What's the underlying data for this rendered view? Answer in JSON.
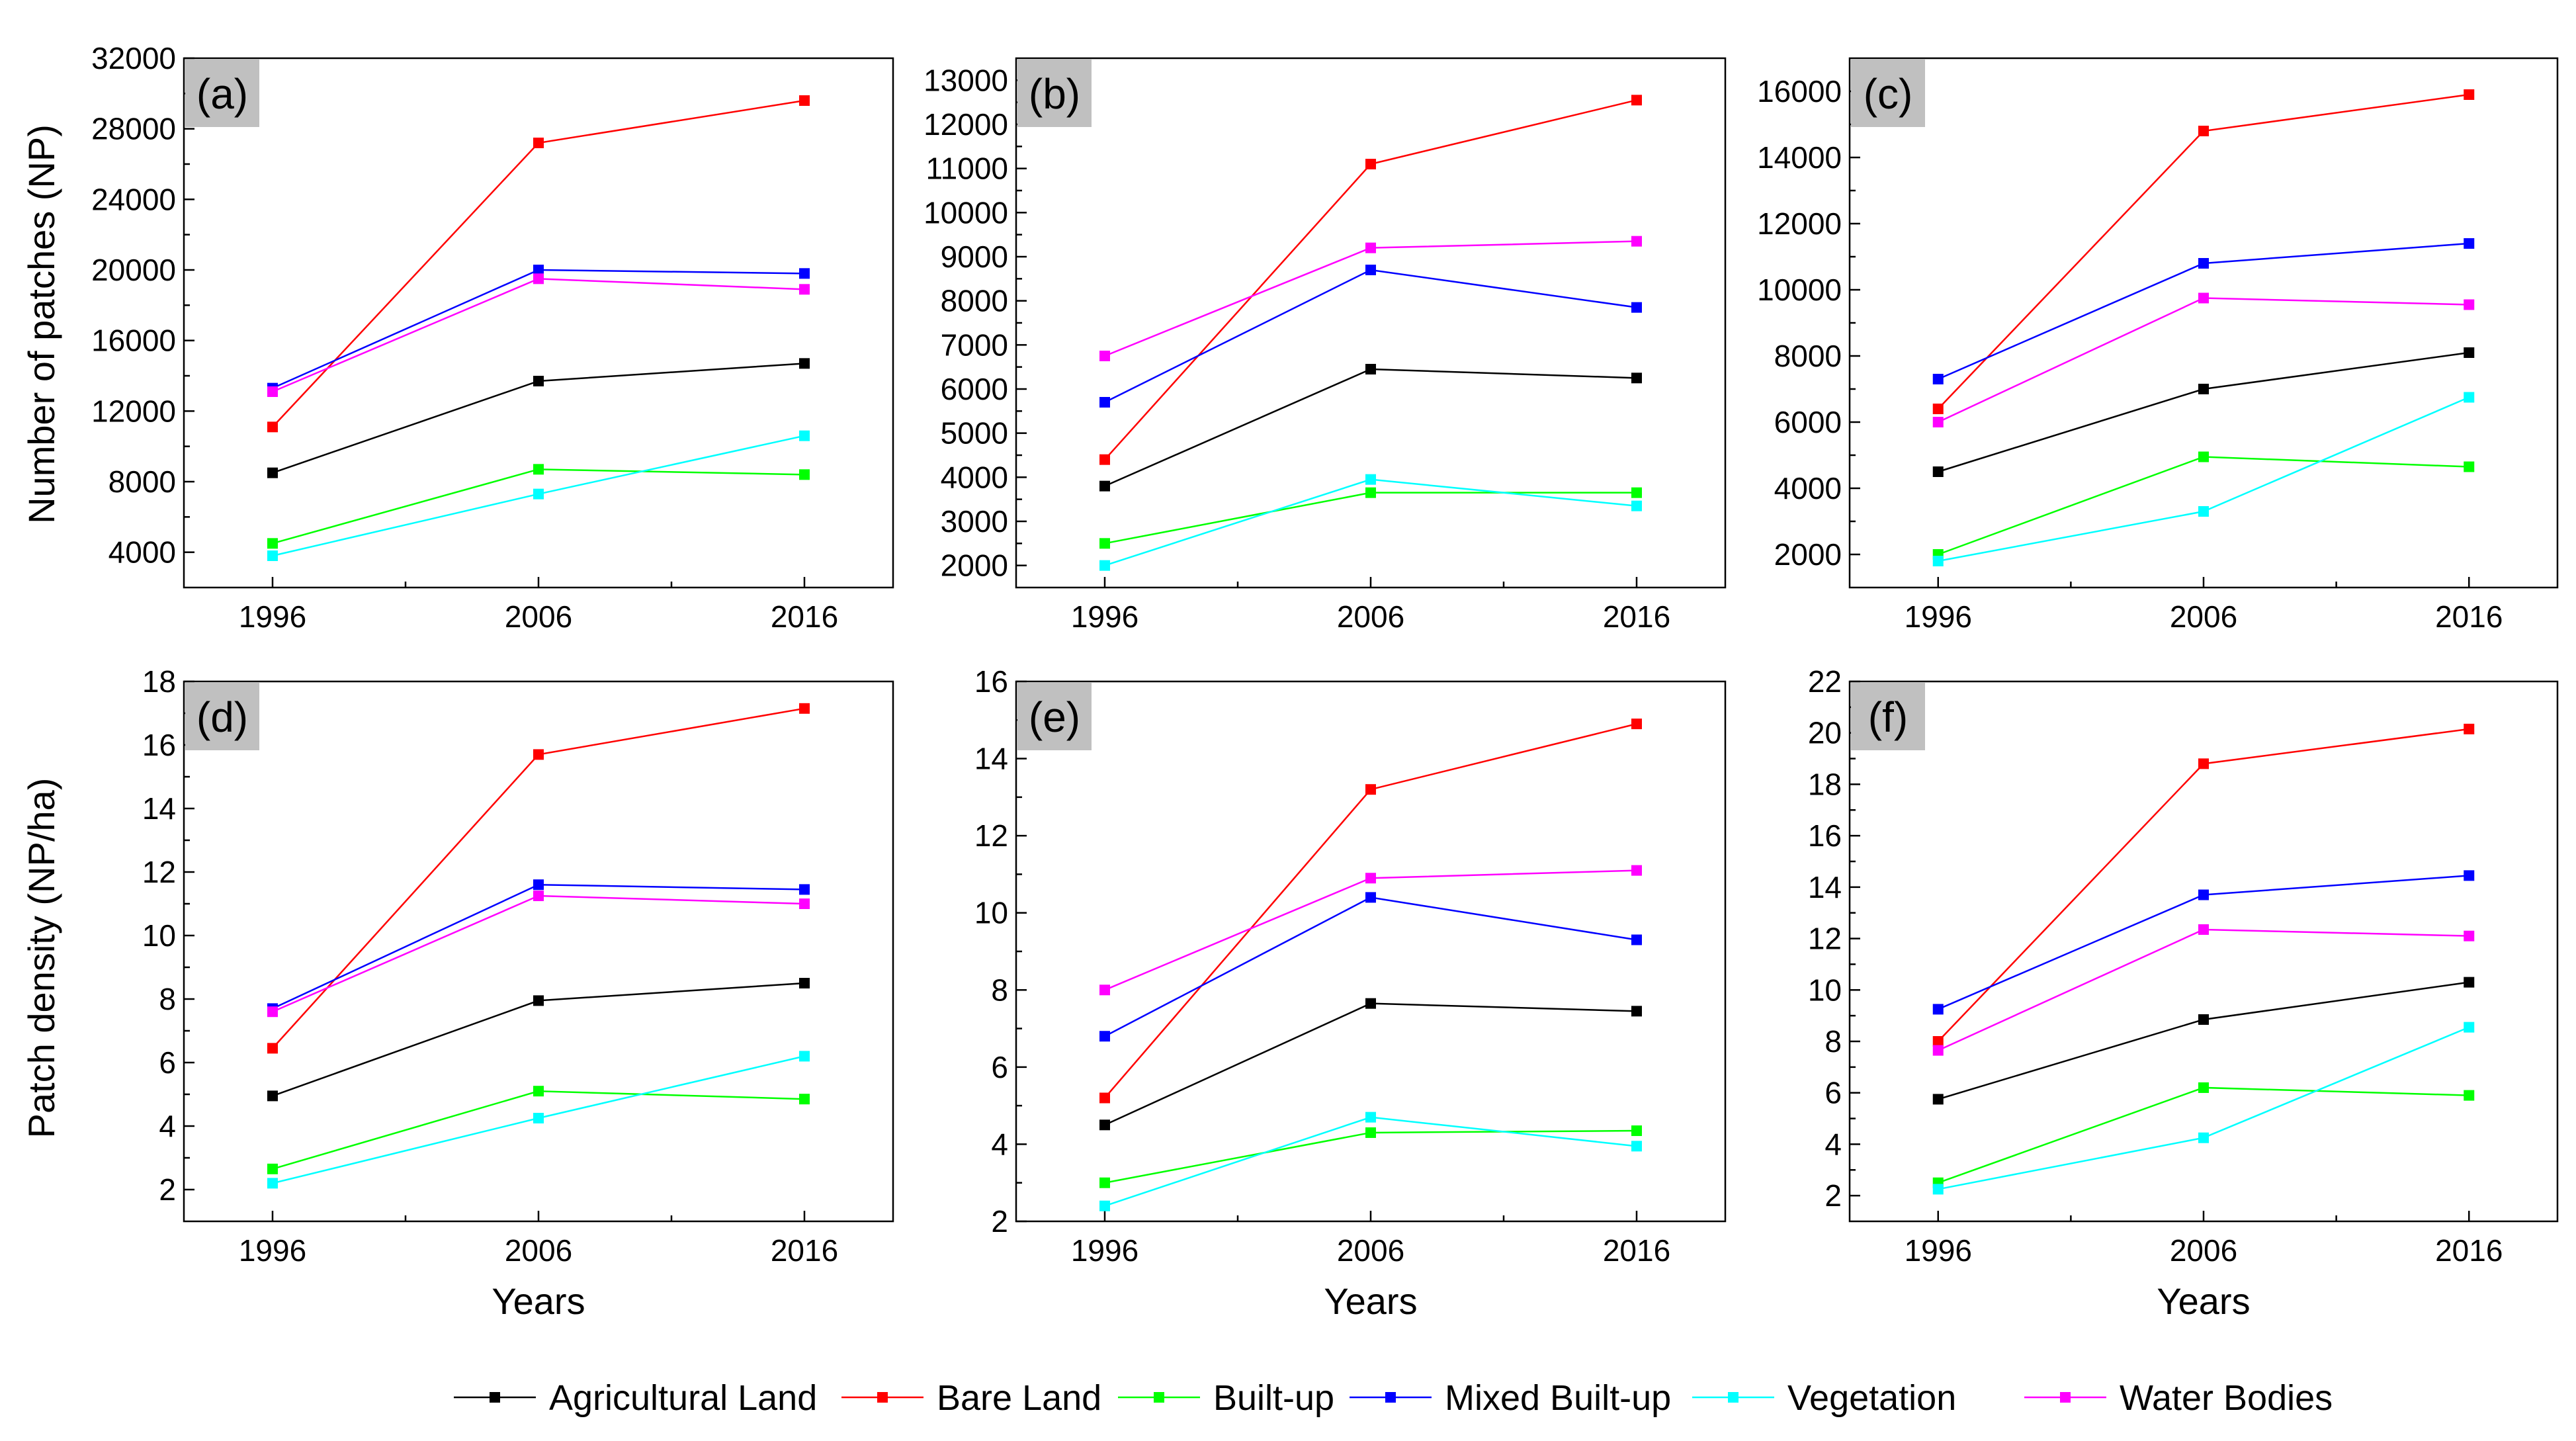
{
  "series_colors": {
    "Agricultural Land": "#000000",
    "Bare Land": "#ff0000",
    "Built-up": "#00ff00",
    "Mixed Built-up": "#0000ff",
    "Vegetation": "#00ffff",
    "Water Bodies": "#ff00ff"
  },
  "shared": {
    "ylabel_top": "Number of patches (NP)",
    "ylabel_bottom": "Patch density (NP/ha)",
    "xlabel": "Years",
    "tag_background": "#c0c0c0"
  },
  "legend": [
    "Agricultural Land",
    "Bare Land",
    "Built-up",
    "Mixed Built-up",
    "Vegetation",
    "Water Bodies"
  ],
  "chart_data": [
    {
      "type": "line",
      "panel": "(a)",
      "xlabel": "",
      "ylabel": "Number of patches (NP)",
      "categories": [
        "1996",
        "2006",
        "2016"
      ],
      "ylim": [
        2000,
        32000
      ],
      "yticks": [
        "4000",
        "8000",
        "12000",
        "16000",
        "20000",
        "24000",
        "28000",
        "32000"
      ],
      "yticks_values": [
        4000,
        8000,
        12000,
        16000,
        20000,
        24000,
        28000,
        32000
      ],
      "series": [
        {
          "name": "Agricultural Land",
          "values": [
            8500,
            13700,
            14700
          ]
        },
        {
          "name": "Bare Land",
          "values": [
            11100,
            27200,
            29600
          ]
        },
        {
          "name": "Built-up",
          "values": [
            4500,
            8700,
            8400
          ]
        },
        {
          "name": "Mixed Built-up",
          "values": [
            13300,
            20000,
            19800
          ]
        },
        {
          "name": "Vegetation",
          "values": [
            3800,
            7300,
            10600
          ]
        },
        {
          "name": "Water Bodies",
          "values": [
            13100,
            19500,
            18900
          ]
        }
      ]
    },
    {
      "type": "line",
      "panel": "(b)",
      "xlabel": "",
      "ylabel": "",
      "categories": [
        "1996",
        "2006",
        "2016"
      ],
      "ylim": [
        1500,
        13500
      ],
      "yticks": [
        "2000",
        "3000",
        "4000",
        "5000",
        "6000",
        "7000",
        "8000",
        "9000",
        "10000",
        "11000",
        "12000",
        "13000"
      ],
      "yticks_values": [
        2000,
        3000,
        4000,
        5000,
        6000,
        7000,
        8000,
        9000,
        10000,
        11000,
        12000,
        13000
      ],
      "series": [
        {
          "name": "Agricultural Land",
          "values": [
            3800,
            6450,
            6250
          ]
        },
        {
          "name": "Bare Land",
          "values": [
            4400,
            11100,
            12550
          ]
        },
        {
          "name": "Built-up",
          "values": [
            2500,
            3650,
            3650
          ]
        },
        {
          "name": "Mixed Built-up",
          "values": [
            5700,
            8700,
            7850
          ]
        },
        {
          "name": "Vegetation",
          "values": [
            2000,
            3950,
            3350
          ]
        },
        {
          "name": "Water Bodies",
          "values": [
            6750,
            9200,
            9350
          ]
        }
      ]
    },
    {
      "type": "line",
      "panel": "(c)",
      "xlabel": "",
      "ylabel": "",
      "categories": [
        "1996",
        "2006",
        "2016"
      ],
      "ylim": [
        1000,
        17000
      ],
      "yticks": [
        "2000",
        "4000",
        "6000",
        "8000",
        "10000",
        "12000",
        "14000",
        "16000"
      ],
      "yticks_values": [
        2000,
        4000,
        6000,
        8000,
        10000,
        12000,
        14000,
        16000
      ],
      "series": [
        {
          "name": "Agricultural Land",
          "values": [
            4500,
            7000,
            8100
          ]
        },
        {
          "name": "Bare Land",
          "values": [
            6400,
            14800,
            15900
          ]
        },
        {
          "name": "Built-up",
          "values": [
            2000,
            4950,
            4650
          ]
        },
        {
          "name": "Mixed Built-up",
          "values": [
            7300,
            10800,
            11400
          ]
        },
        {
          "name": "Vegetation",
          "values": [
            1800,
            3300,
            6750
          ]
        },
        {
          "name": "Water Bodies",
          "values": [
            6000,
            9750,
            9550
          ]
        }
      ]
    },
    {
      "type": "line",
      "panel": "(d)",
      "xlabel": "Years",
      "ylabel": "Patch density (NP/ha)",
      "categories": [
        "1996",
        "2006",
        "2016"
      ],
      "ylim": [
        1,
        18
      ],
      "yticks": [
        "2",
        "4",
        "6",
        "8",
        "10",
        "12",
        "14",
        "16",
        "18"
      ],
      "yticks_values": [
        2,
        4,
        6,
        8,
        10,
        12,
        14,
        16,
        18
      ],
      "series": [
        {
          "name": "Agricultural Land",
          "values": [
            4.95,
            7.95,
            8.5
          ]
        },
        {
          "name": "Bare Land",
          "values": [
            6.45,
            15.7,
            17.15
          ]
        },
        {
          "name": "Built-up",
          "values": [
            2.65,
            5.1,
            4.85
          ]
        },
        {
          "name": "Mixed Built-up",
          "values": [
            7.7,
            11.6,
            11.45
          ]
        },
        {
          "name": "Vegetation",
          "values": [
            2.2,
            4.25,
            6.2
          ]
        },
        {
          "name": "Water Bodies",
          "values": [
            7.6,
            11.25,
            11.0
          ]
        }
      ]
    },
    {
      "type": "line",
      "panel": "(e)",
      "xlabel": "Years",
      "ylabel": "",
      "categories": [
        "1996",
        "2006",
        "2016"
      ],
      "ylim": [
        2,
        16
      ],
      "yticks": [
        "2",
        "4",
        "6",
        "8",
        "10",
        "12",
        "14",
        "16"
      ],
      "yticks_values": [
        2,
        4,
        6,
        8,
        10,
        12,
        14,
        16
      ],
      "series": [
        {
          "name": "Agricultural Land",
          "values": [
            4.5,
            7.65,
            7.45
          ]
        },
        {
          "name": "Bare Land",
          "values": [
            5.2,
            13.2,
            14.9
          ]
        },
        {
          "name": "Built-up",
          "values": [
            3.0,
            4.3,
            4.35
          ]
        },
        {
          "name": "Mixed Built-up",
          "values": [
            6.8,
            10.4,
            9.3
          ]
        },
        {
          "name": "Vegetation",
          "values": [
            2.4,
            4.7,
            3.95
          ]
        },
        {
          "name": "Water Bodies",
          "values": [
            8.0,
            10.9,
            11.1
          ]
        }
      ]
    },
    {
      "type": "line",
      "panel": "(f)",
      "xlabel": "Years",
      "ylabel": "",
      "categories": [
        "1996",
        "2006",
        "2016"
      ],
      "ylim": [
        1,
        22
      ],
      "yticks": [
        "2",
        "4",
        "6",
        "8",
        "10",
        "12",
        "14",
        "16",
        "18",
        "20",
        "22"
      ],
      "yticks_values": [
        2,
        4,
        6,
        8,
        10,
        12,
        14,
        16,
        18,
        20,
        22
      ],
      "series": [
        {
          "name": "Agricultural Land",
          "values": [
            5.75,
            8.85,
            10.3
          ]
        },
        {
          "name": "Bare Land",
          "values": [
            8.0,
            18.8,
            20.15
          ]
        },
        {
          "name": "Built-up",
          "values": [
            2.5,
            6.2,
            5.9
          ]
        },
        {
          "name": "Mixed Built-up",
          "values": [
            9.25,
            13.7,
            14.45
          ]
        },
        {
          "name": "Vegetation",
          "values": [
            2.25,
            4.25,
            8.55
          ]
        },
        {
          "name": "Water Bodies",
          "values": [
            7.65,
            12.35,
            12.1
          ]
        }
      ]
    }
  ]
}
